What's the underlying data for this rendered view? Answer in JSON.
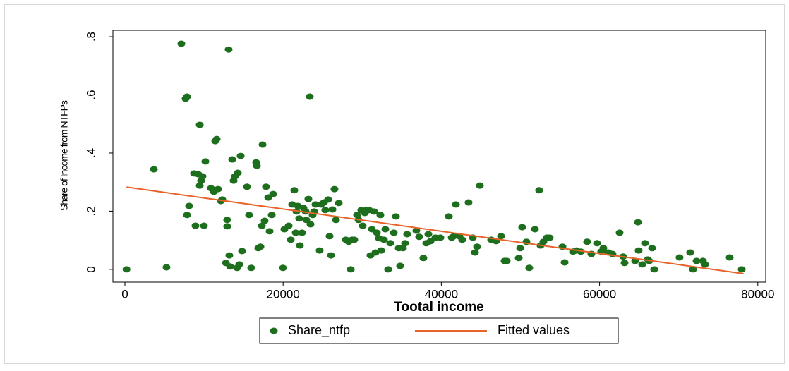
{
  "chart_data": {
    "type": "scatter",
    "xlabel": "Tootal income",
    "ylabel": "Share of Income from NTFPs",
    "xlim": [
      -1516,
      81000
    ],
    "ylim": [
      -0.044,
      0.822
    ],
    "xticks": [
      0,
      20000,
      40000,
      60000,
      80000
    ],
    "yticks": [
      0,
      {
        "value": 0.2,
        "label": ".2"
      },
      {
        "value": 0.4,
        "label": ".4"
      },
      {
        "value": 0.6,
        "label": ".6"
      },
      {
        "value": 0.8,
        "label": ".8"
      }
    ],
    "legend": "bottom",
    "series": [
      {
        "name": "Share_ntfp",
        "type": "scatter",
        "color": "#1d6e1d",
        "x": [
          200,
          3660,
          5260,
          7140,
          7670,
          7850,
          7850,
          8120,
          8740,
          8920,
          9280,
          9460,
          9460,
          9630,
          9990,
          10170,
          9810,
          10880,
          11240,
          11420,
          11600,
          11780,
          12130,
          12310,
          12930,
          13110,
          12930,
          12760,
          13200,
          13290,
          13560,
          13740,
          13920,
          14270,
          14180,
          14450,
          14630,
          14810,
          15430,
          15700,
          15970,
          16590,
          16680,
          16860,
          17130,
          17310,
          17400,
          17660,
          17840,
          18110,
          18290,
          18560,
          18740,
          19980,
          20160,
          20700,
          20960,
          21140,
          21410,
          21590,
          21680,
          21860,
          22030,
          22120,
          22390,
          22570,
          22840,
          22930,
          23190,
          23370,
          23460,
          23730,
          23910,
          24090,
          24620,
          24800,
          25160,
          25330,
          25690,
          25870,
          26050,
          26230,
          26490,
          26670,
          27030,
          27920,
          28280,
          28550,
          28720,
          28990,
          29350,
          29530,
          29880,
          30060,
          30330,
          30510,
          30870,
          31040,
          31220,
          31490,
          31670,
          31850,
          32110,
          32290,
          32380,
          32740,
          32920,
          33270,
          33540,
          33990,
          34260,
          34610,
          34790,
          35150,
          35410,
          35680,
          36840,
          37200,
          37730,
          38090,
          38360,
          38630,
          39250,
          39880,
          40950,
          41310,
          41570,
          41840,
          42280,
          42640,
          43440,
          43980,
          44250,
          44520,
          44870,
          46300,
          46920,
          47550,
          47990,
          48260,
          49780,
          49960,
          50220,
          50760,
          51110,
          51830,
          52360,
          52540,
          52900,
          53340,
          53700,
          55310,
          55580,
          56650,
          57090,
          57630,
          58430,
          58960,
          59680,
          60210,
          60480,
          61110,
          61640,
          62530,
          62980,
          63160,
          64500,
          64850,
          64940,
          65390,
          65740,
          66100,
          66280,
          66640,
          66900,
          70110,
          71450,
          71810,
          72260,
          73060,
          73330,
          76450,
          77970
        ],
        "values": [
          0,
          0.344,
          0.007,
          0.776,
          0.587,
          0.594,
          0.187,
          0.218,
          0.33,
          0.15,
          0.327,
          0.497,
          0.288,
          0.305,
          0.15,
          0.371,
          0.32,
          0.279,
          0.267,
          0.441,
          0.448,
          0.276,
          0.235,
          0.24,
          0.17,
          0.756,
          0.148,
          0.022,
          0.048,
          0.01,
          0.378,
          0.305,
          0.32,
          0.332,
          0.005,
          0.017,
          0.39,
          0.063,
          0.284,
          0.187,
          0.005,
          0.368,
          0.356,
          0.073,
          0.078,
          0.15,
          0.429,
          0.167,
          0.284,
          0.247,
          0.131,
          0.187,
          0.259,
          0.005,
          0.138,
          0.15,
          0.102,
          0.223,
          0.272,
          0.126,
          0.199,
          0.218,
          0.175,
          0.082,
          0.126,
          0.211,
          0.199,
          0.17,
          0.242,
          0.594,
          0.155,
          0.187,
          0.199,
          0.223,
          0.065,
          0.223,
          0.23,
          0.204,
          0.24,
          0.114,
          0.048,
          0.206,
          0.276,
          0.17,
          0.228,
          0.102,
          0.095,
          0,
          0.102,
          0.102,
          0.187,
          0.17,
          0.204,
          0.15,
          0.194,
          0.204,
          0.204,
          0.048,
          0.138,
          0.199,
          0.058,
          0.126,
          0.107,
          0.187,
          0.065,
          0.102,
          0.138,
          0,
          0.09,
          0.126,
          0.182,
          0.073,
          0.012,
          0.073,
          0.09,
          0.121,
          0.133,
          0.112,
          0.039,
          0.09,
          0.121,
          0.097,
          0.109,
          0.109,
          0.182,
          0.109,
          0.114,
          0.223,
          0.114,
          0.102,
          0.23,
          0.109,
          0.058,
          0.078,
          0.288,
          0.102,
          0.097,
          0.114,
          0.029,
          0.029,
          0.039,
          0.073,
          0.145,
          0.095,
          0.005,
          0.138,
          0.272,
          0.082,
          0.095,
          0.109,
          0.109,
          0.078,
          0.024,
          0.061,
          0.065,
          0.061,
          0.095,
          0.053,
          0.09,
          0.061,
          0.073,
          0.058,
          0.053,
          0.126,
          0.044,
          0.022,
          0.029,
          0.162,
          0.065,
          0.017,
          0.09,
          0.034,
          0.029,
          0.073,
          0,
          0.041,
          0.058,
          0,
          0.029,
          0.029,
          0.017,
          0.041,
          0
        ]
      },
      {
        "name": "Fitted values",
        "type": "line",
        "color": "#e8632a",
        "x": [
          200,
          78200
        ],
        "values": [
          0.283,
          -0.015
        ]
      }
    ]
  }
}
